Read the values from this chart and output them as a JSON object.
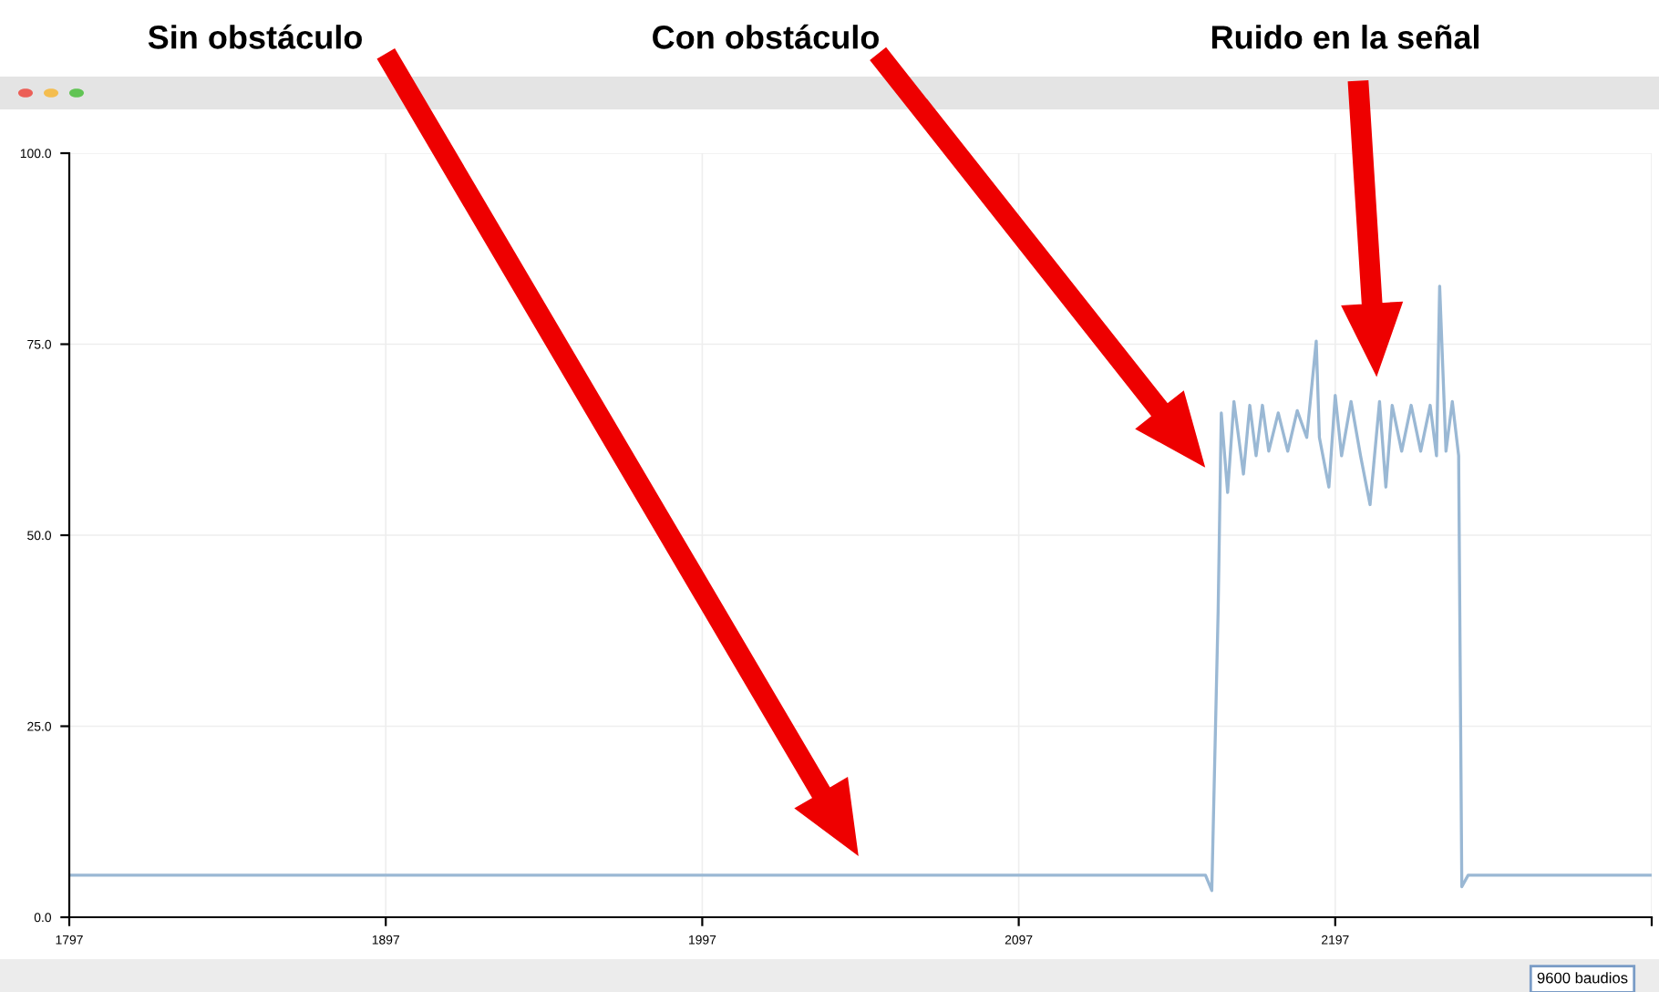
{
  "chart_data": {
    "type": "line",
    "x": [
      1797,
      2156,
      2158,
      2160,
      2161,
      2163,
      2165,
      2168,
      2170,
      2172,
      2174,
      2176,
      2179,
      2182,
      2185,
      2188,
      2191,
      2192,
      2195,
      2197,
      2199,
      2202,
      2205,
      2208,
      2211,
      2213,
      2215,
      2218,
      2221,
      2224,
      2227,
      2229,
      2230,
      2232,
      2234,
      2236,
      2237,
      2239,
      2297
    ],
    "series": [
      {
        "color": "#9ab8d4",
        "values": [
          5.5,
          5.5,
          3.5,
          40,
          66,
          55.6,
          67.5,
          58,
          67,
          60.4,
          67,
          61,
          66,
          61,
          66.3,
          62.8,
          75.4,
          62.8,
          56.3,
          68.3,
          60.4,
          67.5,
          60.4,
          54,
          67.5,
          56.3,
          67,
          61,
          67,
          61,
          67,
          60.4,
          82.6,
          61,
          67.5,
          60.4,
          4,
          5.5,
          5.5
        ]
      }
    ],
    "xlim": [
      1797,
      2297
    ],
    "xticks": [
      1797,
      1897,
      1997,
      2097,
      2197,
      {
        "value": 2297,
        "label": null
      }
    ],
    "ylim": [
      0,
      100
    ],
    "yticks": [
      {
        "value": 0,
        "label": "0.0"
      },
      {
        "value": 25,
        "label": "25.0"
      },
      {
        "value": 50,
        "label": "50.0"
      },
      {
        "value": 75,
        "label": "75.0"
      },
      {
        "value": 100,
        "label": "100.0"
      }
    ],
    "grid": true,
    "marker": "none",
    "line_style": "solid",
    "annotations": [
      "Sin obstáculo",
      "Con obstáculo",
      "Ruido en la señal",
      "9600 baudios"
    ]
  }
}
